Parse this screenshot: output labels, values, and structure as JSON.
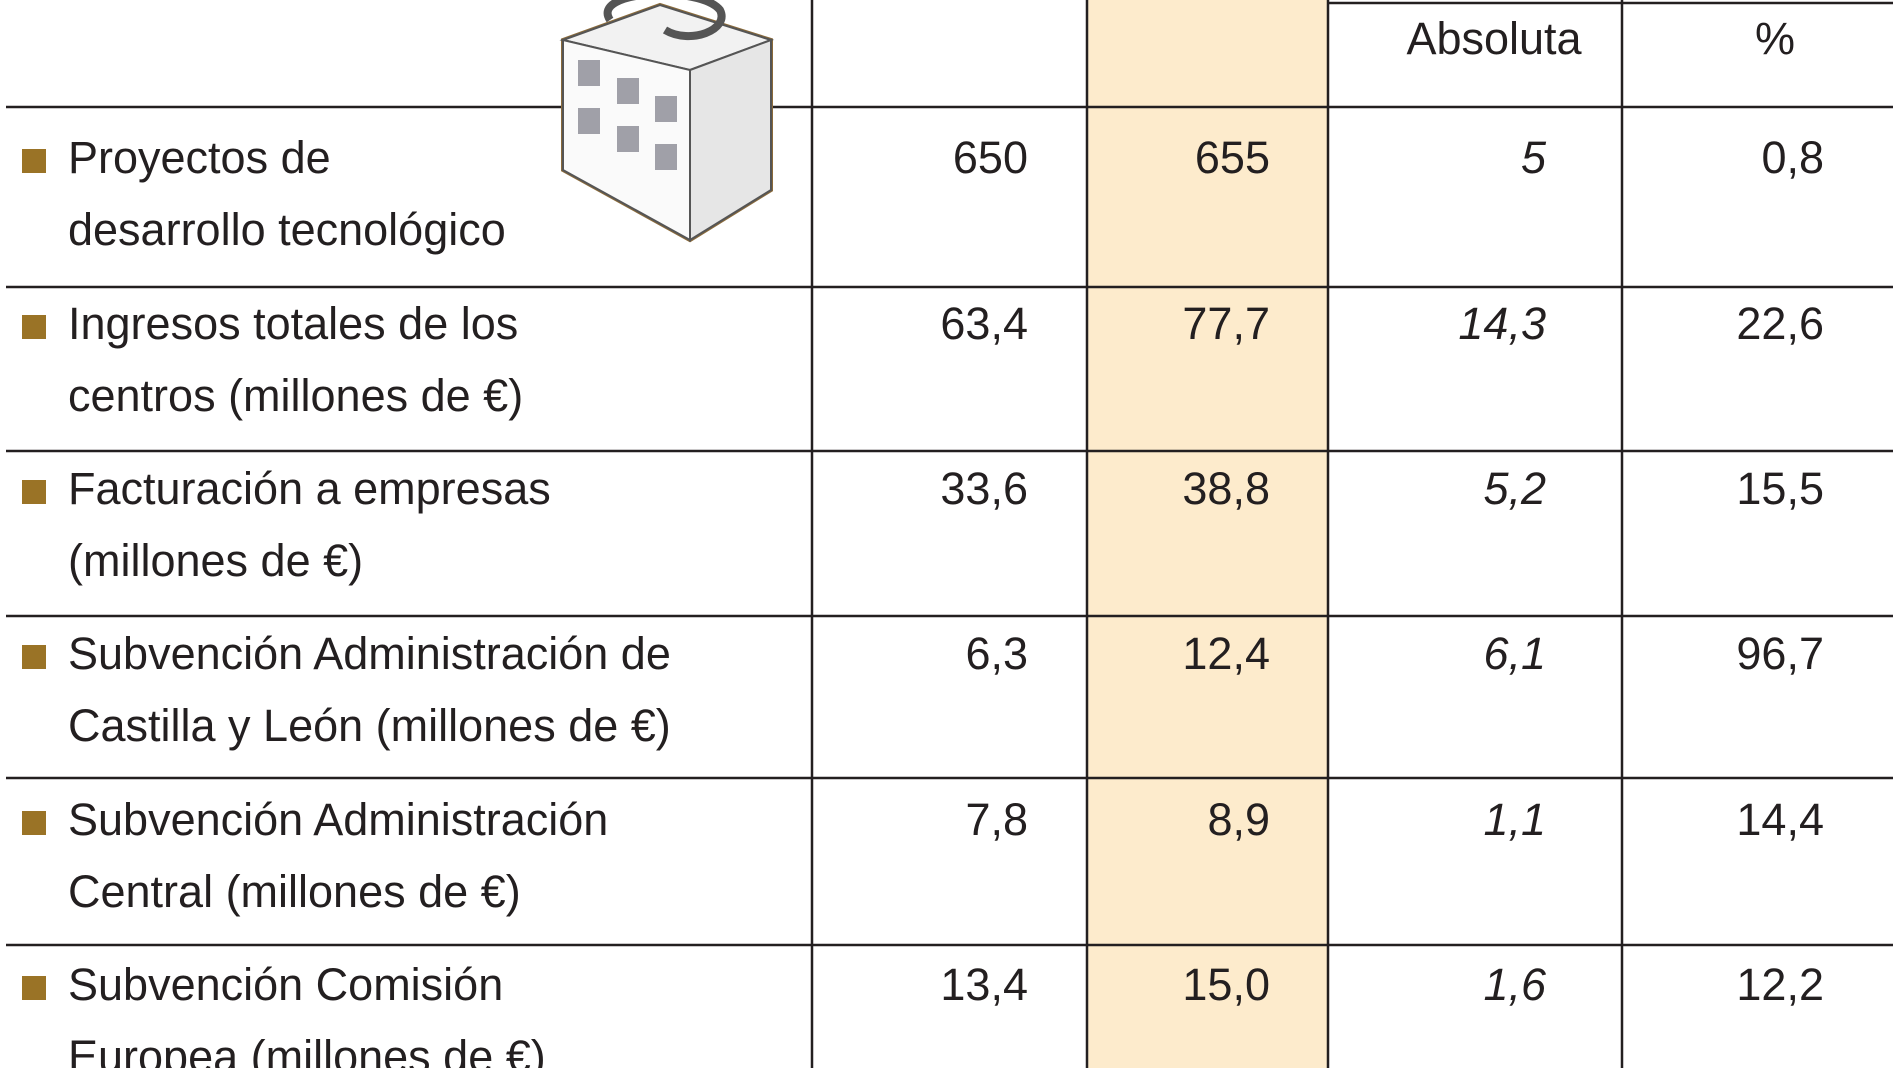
{
  "table": {
    "header": [
      "Absoluta",
      "%"
    ],
    "rows": [
      {
        "label": [
          "Proyectos de",
          "desarrollo tecnológico"
        ],
        "cells": [
          "650",
          "655",
          "5",
          "0,8"
        ]
      },
      {
        "label": [
          "Ingresos totales de los",
          "centros (millones de €)"
        ],
        "cells": [
          "63,4",
          "77,7",
          "14,3",
          "22,6"
        ]
      },
      {
        "label": [
          "Facturación a empresas",
          "(millones de €)"
        ],
        "cells": [
          "33,6",
          "38,8",
          "5,2",
          "15,5"
        ]
      },
      {
        "label": [
          "Subvención Administración de",
          "Castilla y León (millones de €)"
        ],
        "cells": [
          "6,3",
          "12,4",
          "6,1",
          "96,7"
        ]
      },
      {
        "label": [
          "Subvención Administración",
          "Central (millones de €)"
        ],
        "cells": [
          "7,8",
          "8,9",
          "1,1",
          "14,4"
        ]
      },
      {
        "label": [
          "Subvención Comisión",
          "Europea (millones de €)"
        ],
        "cells": [
          "13,4",
          "15,0",
          "1,6",
          "12,2"
        ]
      }
    ]
  }
}
